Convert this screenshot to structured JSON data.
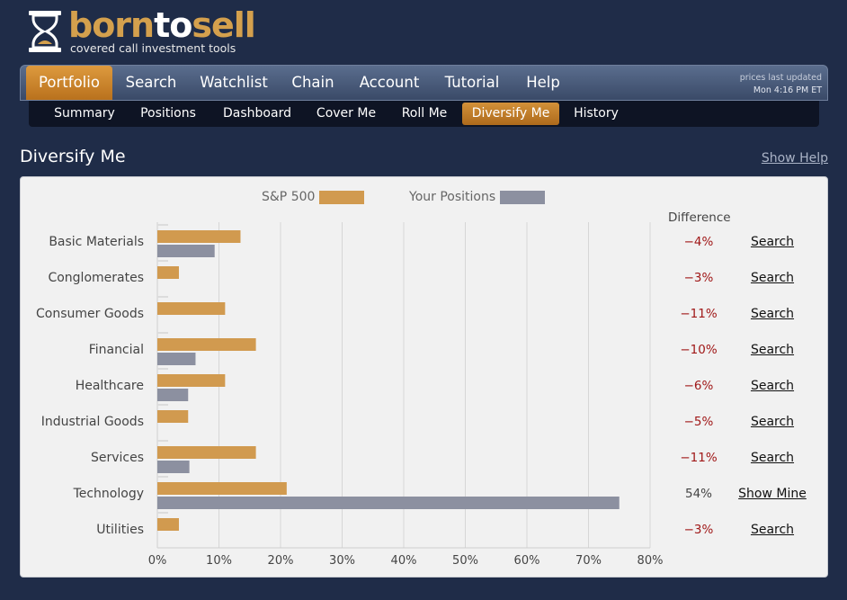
{
  "brand": {
    "name_part1": "born",
    "name_part2": "to",
    "name_part3": "sell",
    "tagline": "covered call investment tools"
  },
  "main_nav": {
    "tabs": [
      {
        "label": "Portfolio",
        "active": true
      },
      {
        "label": "Search",
        "active": false
      },
      {
        "label": "Watchlist",
        "active": false
      },
      {
        "label": "Chain",
        "active": false
      },
      {
        "label": "Account",
        "active": false
      },
      {
        "label": "Tutorial",
        "active": false
      },
      {
        "label": "Help",
        "active": false
      }
    ],
    "prices_updated_label": "prices last updated",
    "prices_updated_time": "Mon 4:16 PM ET"
  },
  "sub_nav": {
    "tabs": [
      {
        "label": "Summary",
        "active": false
      },
      {
        "label": "Positions",
        "active": false
      },
      {
        "label": "Dashboard",
        "active": false
      },
      {
        "label": "Cover Me",
        "active": false
      },
      {
        "label": "Roll Me",
        "active": false
      },
      {
        "label": "Diversify Me",
        "active": true
      },
      {
        "label": "History",
        "active": false
      }
    ]
  },
  "page": {
    "title": "Diversify Me",
    "help_link": "Show Help",
    "difference_header": "Difference"
  },
  "colors": {
    "sp500": "#d19a4f",
    "positions": "#8c90a0",
    "negative": "#a01818",
    "accent": "#dd9a3e"
  },
  "rows": [
    {
      "category": "Basic Materials",
      "difference": "−4%",
      "action": "Search"
    },
    {
      "category": "Conglomerates",
      "difference": "−3%",
      "action": "Search"
    },
    {
      "category": "Consumer Goods",
      "difference": "−11%",
      "action": "Search"
    },
    {
      "category": "Financial",
      "difference": "−10%",
      "action": "Search"
    },
    {
      "category": "Healthcare",
      "difference": "−6%",
      "action": "Search"
    },
    {
      "category": "Industrial Goods",
      "difference": "−5%",
      "action": "Search"
    },
    {
      "category": "Services",
      "difference": "−11%",
      "action": "Search"
    },
    {
      "category": "Technology",
      "difference": "54%",
      "action": "Show Mine"
    },
    {
      "category": "Utilities",
      "difference": "−3%",
      "action": "Search"
    }
  ],
  "chart_data": {
    "type": "bar",
    "orientation": "horizontal",
    "categories": [
      "Basic Materials",
      "Conglomerates",
      "Consumer Goods",
      "Financial",
      "Healthcare",
      "Industrial Goods",
      "Services",
      "Technology",
      "Utilities"
    ],
    "series": [
      {
        "name": "S&P 500",
        "values": [
          13.5,
          3.5,
          11,
          16,
          11,
          5,
          16,
          21,
          3.5
        ]
      },
      {
        "name": "Your Positions",
        "values": [
          9.3,
          0,
          0,
          6.2,
          5,
          0,
          5.2,
          75,
          0
        ]
      }
    ],
    "xlim": [
      0,
      80
    ],
    "ticks": [
      "0%",
      "10%",
      "20%",
      "30%",
      "40%",
      "50%",
      "60%",
      "70%",
      "80%"
    ],
    "grid": true,
    "legend": "top"
  }
}
